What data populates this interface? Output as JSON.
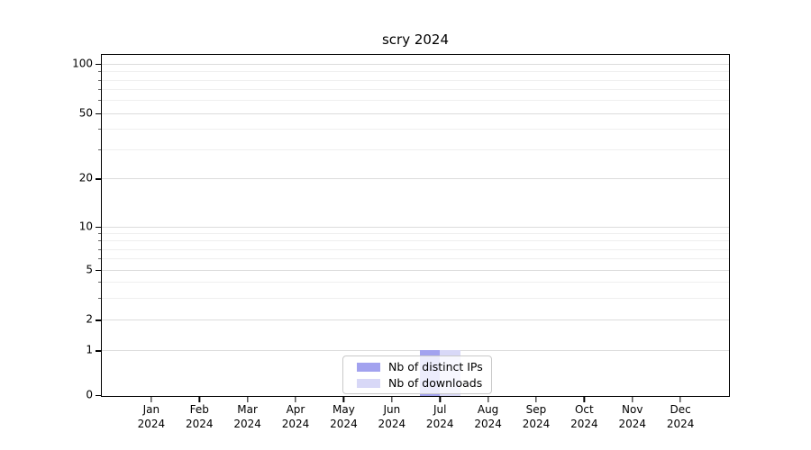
{
  "title": "scry 2024",
  "chart_data": {
    "type": "bar",
    "title": "scry 2024",
    "categories": [
      "Jan",
      "Feb",
      "Mar",
      "Apr",
      "May",
      "Jun",
      "Jul",
      "Aug",
      "Sep",
      "Oct",
      "Nov",
      "Dec"
    ],
    "x_year_label": "2024",
    "series": [
      {
        "name": "Nb of distinct IPs",
        "color": "#a2a2ef",
        "values": [
          0,
          0,
          0,
          0,
          0,
          0,
          1,
          0,
          0,
          0,
          0,
          0
        ]
      },
      {
        "name": "Nb of downloads",
        "color": "#d8d8f7",
        "values": [
          0,
          0,
          0,
          0,
          0,
          0,
          1,
          0,
          0,
          0,
          0,
          0
        ]
      }
    ],
    "y_ticks": [
      0,
      1,
      2,
      5,
      10,
      20,
      50,
      100
    ],
    "y_minor_ticks": [
      3,
      4,
      6,
      7,
      8,
      9,
      30,
      40,
      60,
      70,
      80,
      90
    ],
    "yscale": "symlog",
    "ylim": [
      0,
      113
    ],
    "xlabel": "",
    "ylabel": "",
    "grid": true,
    "legend_position": "lower center"
  },
  "legend": {
    "items": [
      {
        "label": "Nb of distinct IPs",
        "color": "#a2a2ef"
      },
      {
        "label": "Nb of downloads",
        "color": "#d8d8f7"
      }
    ]
  }
}
